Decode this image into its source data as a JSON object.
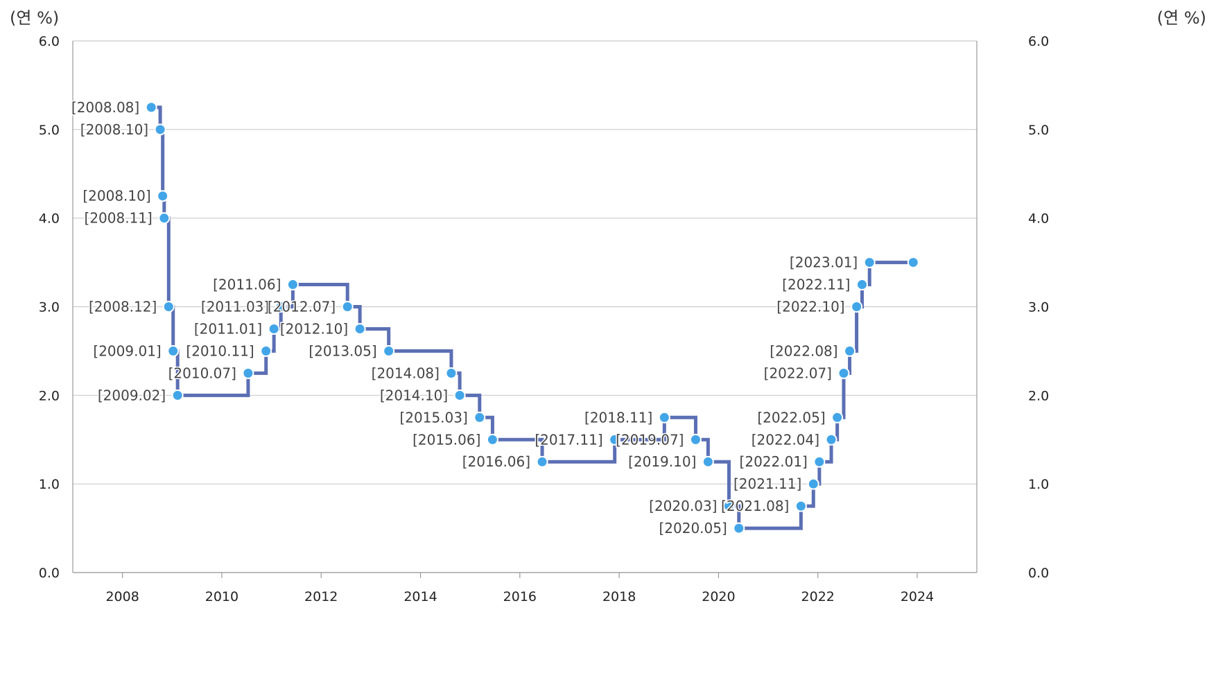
{
  "chart_data": {
    "type": "line",
    "step": true,
    "unit_left": "(연 %)",
    "unit_right": "(연 %)",
    "ylim": [
      0,
      6
    ],
    "yticks": [
      "0.0",
      "1.0",
      "2.0",
      "3.0",
      "4.0",
      "5.0",
      "6.0"
    ],
    "xlim": [
      2007,
      2025.2
    ],
    "xticks": [
      "2008",
      "2010",
      "2012",
      "2014",
      "2016",
      "2018",
      "2020",
      "2022",
      "2024"
    ],
    "grid": true,
    "colors": {
      "line": "#5b6fb4",
      "point": "#42a5e8",
      "grid": "#cccccc",
      "axis": "#999999"
    },
    "points": [
      {
        "label": "[2008.08]",
        "x": 2008.58,
        "y": 5.25
      },
      {
        "label": "[2008.10]",
        "x": 2008.76,
        "y": 5.0
      },
      {
        "label": "[2008.10]",
        "x": 2008.81,
        "y": 4.25
      },
      {
        "label": "[2008.11]",
        "x": 2008.84,
        "y": 4.0
      },
      {
        "label": "[2008.12]",
        "x": 2008.93,
        "y": 3.0
      },
      {
        "label": "[2009.01]",
        "x": 2009.02,
        "y": 2.5
      },
      {
        "label": "[2009.02]",
        "x": 2009.11,
        "y": 2.0
      },
      {
        "label": "[2010.07]",
        "x": 2010.53,
        "y": 2.25
      },
      {
        "label": "[2010.11]",
        "x": 2010.89,
        "y": 2.5
      },
      {
        "label": "[2011.01]",
        "x": 2011.05,
        "y": 2.75
      },
      {
        "label": "[2011.03]",
        "x": 2011.19,
        "y": 3.0
      },
      {
        "label": "[2011.06]",
        "x": 2011.43,
        "y": 3.25
      },
      {
        "label": "[2012.07]",
        "x": 2012.53,
        "y": 3.0
      },
      {
        "label": "[2012.10]",
        "x": 2012.78,
        "y": 2.75
      },
      {
        "label": "[2013.05]",
        "x": 2013.36,
        "y": 2.5
      },
      {
        "label": "[2014.08]",
        "x": 2014.62,
        "y": 2.25
      },
      {
        "label": "[2014.10]",
        "x": 2014.79,
        "y": 2.0
      },
      {
        "label": "[2015.03]",
        "x": 2015.19,
        "y": 1.75
      },
      {
        "label": "[2015.06]",
        "x": 2015.45,
        "y": 1.5
      },
      {
        "label": "[2016.06]",
        "x": 2016.45,
        "y": 1.25
      },
      {
        "label": "[2017.11]",
        "x": 2017.91,
        "y": 1.5
      },
      {
        "label": "[2018.11]",
        "x": 2018.91,
        "y": 1.75
      },
      {
        "label": "[2019.07]",
        "x": 2019.54,
        "y": 1.5
      },
      {
        "label": "[2019.10]",
        "x": 2019.79,
        "y": 1.25
      },
      {
        "label": "[2020.03]",
        "x": 2020.21,
        "y": 0.75
      },
      {
        "label": "[2020.05]",
        "x": 2020.41,
        "y": 0.5
      },
      {
        "label": "[2021.08]",
        "x": 2021.66,
        "y": 0.75
      },
      {
        "label": "[2021.11]",
        "x": 2021.91,
        "y": 1.0
      },
      {
        "label": "[2022.01]",
        "x": 2022.03,
        "y": 1.25
      },
      {
        "label": "[2022.04]",
        "x": 2022.27,
        "y": 1.5
      },
      {
        "label": "[2022.05]",
        "x": 2022.39,
        "y": 1.75
      },
      {
        "label": "[2022.07]",
        "x": 2022.52,
        "y": 2.25
      },
      {
        "label": "[2022.08]",
        "x": 2022.64,
        "y": 2.5
      },
      {
        "label": "[2022.10]",
        "x": 2022.78,
        "y": 3.0
      },
      {
        "label": "[2022.11]",
        "x": 2022.89,
        "y": 3.25
      },
      {
        "label": "[2023.01]",
        "x": 2023.04,
        "y": 3.5
      },
      {
        "label": "",
        "x": 2023.92,
        "y": 3.5
      }
    ]
  }
}
